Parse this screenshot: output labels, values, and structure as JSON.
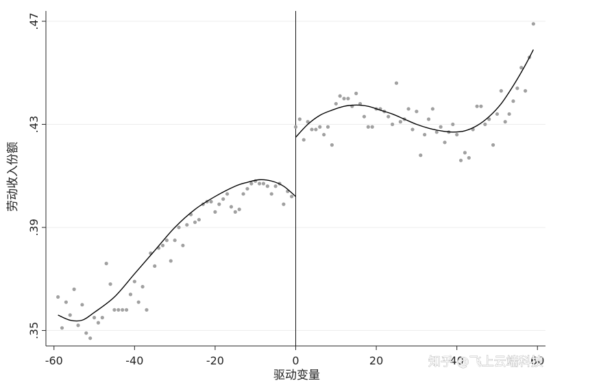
{
  "chart_data": {
    "type": "scatter",
    "xlabel": "驱动变量",
    "ylabel": "劳动收入份额",
    "xlim": [
      -62,
      62
    ],
    "ylim": [
      0.344,
      0.474
    ],
    "x_ticks": [
      -60,
      -40,
      -20,
      0,
      20,
      40,
      60
    ],
    "x_tick_labels": [
      "-60",
      "-40",
      "-20",
      "0",
      "20",
      "40",
      "60"
    ],
    "y_ticks": [
      0.35,
      0.39,
      0.43,
      0.47
    ],
    "y_tick_labels": [
      ".35",
      ".39",
      ".43",
      ".47"
    ],
    "grid": true,
    "cutoff": 0,
    "point_color": "#a0a0a0",
    "line_color": "#000000",
    "scatter_points": [
      [
        -59,
        0.363
      ],
      [
        -58,
        0.351
      ],
      [
        -57,
        0.361
      ],
      [
        -56,
        0.356
      ],
      [
        -55,
        0.366
      ],
      [
        -54,
        0.352
      ],
      [
        -53,
        0.36
      ],
      [
        -52,
        0.349
      ],
      [
        -51,
        0.347
      ],
      [
        -50,
        0.355
      ],
      [
        -49,
        0.353
      ],
      [
        -48,
        0.355
      ],
      [
        -47,
        0.376
      ],
      [
        -46,
        0.368
      ],
      [
        -45,
        0.358
      ],
      [
        -44,
        0.358
      ],
      [
        -43,
        0.358
      ],
      [
        -42,
        0.358
      ],
      [
        -41,
        0.364
      ],
      [
        -40,
        0.369
      ],
      [
        -39,
        0.361
      ],
      [
        -38,
        0.367
      ],
      [
        -37,
        0.358
      ],
      [
        -36,
        0.38
      ],
      [
        -35,
        0.375
      ],
      [
        -34,
        0.382
      ],
      [
        -33,
        0.383
      ],
      [
        -32,
        0.385
      ],
      [
        -31,
        0.377
      ],
      [
        -30,
        0.385
      ],
      [
        -29,
        0.39
      ],
      [
        -28,
        0.383
      ],
      [
        -27,
        0.391
      ],
      [
        -26,
        0.395
      ],
      [
        -25,
        0.392
      ],
      [
        -24,
        0.393
      ],
      [
        -23,
        0.399
      ],
      [
        -22,
        0.4
      ],
      [
        -21,
        0.4
      ],
      [
        -20,
        0.396
      ],
      [
        -19,
        0.399
      ],
      [
        -18,
        0.401
      ],
      [
        -17,
        0.403
      ],
      [
        -16,
        0.398
      ],
      [
        -15,
        0.396
      ],
      [
        -14,
        0.397
      ],
      [
        -13,
        0.403
      ],
      [
        -12,
        0.405
      ],
      [
        -11,
        0.407
      ],
      [
        -10,
        0.408
      ],
      [
        -9,
        0.407
      ],
      [
        -8,
        0.407
      ],
      [
        -7,
        0.406
      ],
      [
        -6,
        0.403
      ],
      [
        -5,
        0.406
      ],
      [
        -4,
        0.407
      ],
      [
        -3,
        0.399
      ],
      [
        -2,
        0.404
      ],
      [
        -1,
        0.402
      ],
      [
        0,
        0.429
      ],
      [
        1,
        0.432
      ],
      [
        2,
        0.424
      ],
      [
        3,
        0.431
      ],
      [
        4,
        0.428
      ],
      [
        5,
        0.428
      ],
      [
        6,
        0.429
      ],
      [
        7,
        0.426
      ],
      [
        8,
        0.429
      ],
      [
        9,
        0.422
      ],
      [
        10,
        0.438
      ],
      [
        11,
        0.441
      ],
      [
        12,
        0.44
      ],
      [
        13,
        0.44
      ],
      [
        14,
        0.437
      ],
      [
        15,
        0.442
      ],
      [
        16,
        0.438
      ],
      [
        17,
        0.433
      ],
      [
        18,
        0.429
      ],
      [
        19,
        0.429
      ],
      [
        20,
        0.436
      ],
      [
        21,
        0.436
      ],
      [
        22,
        0.435
      ],
      [
        23,
        0.433
      ],
      [
        24,
        0.43
      ],
      [
        25,
        0.446
      ],
      [
        26,
        0.431
      ],
      [
        27,
        0.432
      ],
      [
        28,
        0.436
      ],
      [
        29,
        0.428
      ],
      [
        30,
        0.435
      ],
      [
        31,
        0.418
      ],
      [
        32,
        0.426
      ],
      [
        33,
        0.432
      ],
      [
        34,
        0.436
      ],
      [
        35,
        0.427
      ],
      [
        36,
        0.429
      ],
      [
        37,
        0.423
      ],
      [
        38,
        0.427
      ],
      [
        39,
        0.43
      ],
      [
        40,
        0.426
      ],
      [
        41,
        0.416
      ],
      [
        42,
        0.419
      ],
      [
        43,
        0.417
      ],
      [
        44,
        0.428
      ],
      [
        45,
        0.437
      ],
      [
        46,
        0.437
      ],
      [
        47,
        0.43
      ],
      [
        48,
        0.432
      ],
      [
        49,
        0.422
      ],
      [
        50,
        0.434
      ],
      [
        51,
        0.443
      ],
      [
        52,
        0.431
      ],
      [
        53,
        0.434
      ],
      [
        54,
        0.439
      ],
      [
        55,
        0.444
      ],
      [
        56,
        0.452
      ],
      [
        57,
        0.443
      ],
      [
        58,
        0.456
      ],
      [
        59,
        0.469
      ]
    ],
    "fit_left": [
      [
        -59,
        0.356
      ],
      [
        -56,
        0.354
      ],
      [
        -53,
        0.354
      ],
      [
        -50,
        0.357
      ],
      [
        -45,
        0.363
      ],
      [
        -40,
        0.372
      ],
      [
        -35,
        0.381
      ],
      [
        -30,
        0.39
      ],
      [
        -25,
        0.397
      ],
      [
        -20,
        0.402
      ],
      [
        -15,
        0.406
      ],
      [
        -12,
        0.4075
      ],
      [
        -9,
        0.4085
      ],
      [
        -6,
        0.408
      ],
      [
        -3,
        0.406
      ],
      [
        0,
        0.402
      ]
    ],
    "fit_right": [
      [
        0,
        0.425
      ],
      [
        3,
        0.43
      ],
      [
        6,
        0.4335
      ],
      [
        9,
        0.4355
      ],
      [
        12,
        0.437
      ],
      [
        15,
        0.4375
      ],
      [
        18,
        0.437
      ],
      [
        21,
        0.4355
      ],
      [
        24,
        0.434
      ],
      [
        27,
        0.432
      ],
      [
        30,
        0.43
      ],
      [
        33,
        0.4285
      ],
      [
        36,
        0.4275
      ],
      [
        39,
        0.427
      ],
      [
        42,
        0.4275
      ],
      [
        45,
        0.4295
      ],
      [
        48,
        0.433
      ],
      [
        51,
        0.438
      ],
      [
        54,
        0.445
      ],
      [
        57,
        0.453
      ],
      [
        59,
        0.459
      ]
    ]
  },
  "watermark": "知乎 @飞上云端科技"
}
